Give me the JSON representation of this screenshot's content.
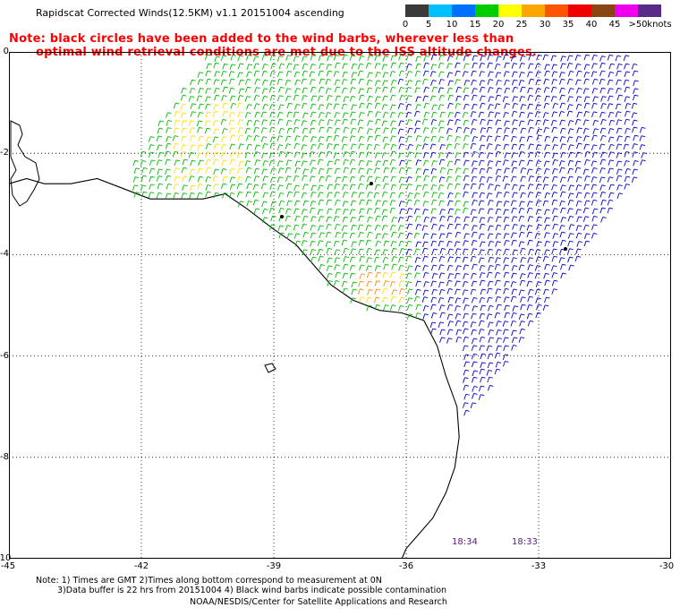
{
  "header": {
    "title": "Rapidscat Corrected Winds(12.5KM) v1.1 20151004 ascending",
    "note_line1": "Note: black circles have been added to the wind barbs, wherever less than",
    "note_line2": "optimal wind retrieval conditions are met due to the ISS altitude changes."
  },
  "legend": {
    "units": "knots",
    "bins": [
      {
        "label": "0",
        "color": "#3a3a3a"
      },
      {
        "label": "5",
        "color": "#00bfff"
      },
      {
        "label": "10",
        "color": "#0070ff"
      },
      {
        "label": "15",
        "color": "#00cc00"
      },
      {
        "label": "20",
        "color": "#ffff00"
      },
      {
        "label": "25",
        "color": "#ffa500"
      },
      {
        "label": "30",
        "color": "#ff5500"
      },
      {
        "label": "35",
        "color": "#ee0000"
      },
      {
        "label": "40",
        "color": "#8b4513"
      },
      {
        "label": "45",
        "color": "#ee00ee"
      },
      {
        "label": ">50",
        "color": "#5a2a8a"
      }
    ]
  },
  "map": {
    "lon_ticks": [
      "-45",
      "-42",
      "-39",
      "-36",
      "-33",
      "-30"
    ],
    "lat_ticks": [
      "0",
      "-2",
      "-4",
      "-6",
      "-8",
      "-10"
    ],
    "lon_range": [
      -45,
      -30
    ],
    "lat_range": [
      0,
      -10
    ],
    "swath_times": [
      "18:34",
      "18:33"
    ],
    "barb_colors": {
      "blue": "#0000cc",
      "green": "#00bb00",
      "yellow": "#ffdd00",
      "orange": "#ff8800"
    }
  },
  "footer": {
    "line1": "Note: 1) Times are GMT 2)Times along bottom correspond to measurement at 0N",
    "line2": "3)Data buffer is 22 hrs from 20151004 4) Black wind barbs indicate possible contamination",
    "line3": "NOAA/NESDIS/Center for Satellite Applications and Research"
  }
}
